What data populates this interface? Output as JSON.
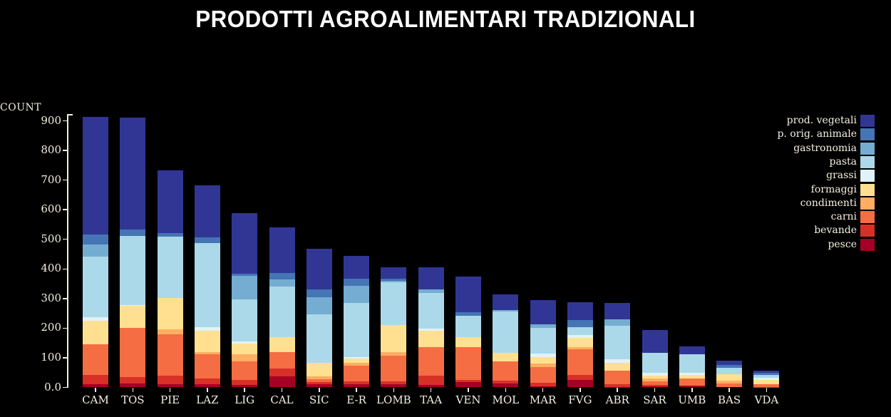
{
  "title": "PRODOTTI AGROALIMENTARI TRADIZIONALI",
  "y_axis": {
    "label": "COUNT",
    "tick_labels": [
      "0.0",
      "100",
      "200",
      "300",
      "400",
      "500",
      "600",
      "700",
      "800",
      "900"
    ],
    "tick_values": [
      0,
      100,
      200,
      300,
      400,
      500,
      600,
      700,
      800,
      900
    ]
  },
  "legend": [
    {
      "label": "prod. vegetali",
      "color": "#313695"
    },
    {
      "label": "p. orig. animale",
      "color": "#4575b4"
    },
    {
      "label": "gastronomia",
      "color": "#74add1"
    },
    {
      "label": "pasta",
      "color": "#abd9e9"
    },
    {
      "label": "grassi",
      "color": "#e0f3f8"
    },
    {
      "label": "formaggi",
      "color": "#fee090"
    },
    {
      "label": "condimenti",
      "color": "#fdae61"
    },
    {
      "label": "carni",
      "color": "#f46d43"
    },
    {
      "label": "bevande",
      "color": "#d73027"
    },
    {
      "label": "pesce",
      "color": "#a50026"
    }
  ],
  "chart_data": {
    "type": "bar",
    "stacked": true,
    "title": "PRODOTTI AGROALIMENTARI TRADIZIONALI",
    "xlabel": "",
    "ylabel": "COUNT",
    "ylim": [
      0,
      900
    ],
    "grid": false,
    "legend_position": "right",
    "categories": [
      "CAM",
      "TOS",
      "PIE",
      "LAZ",
      "LIG",
      "CAL",
      "SIC",
      "E-R",
      "LOMB",
      "TAA",
      "VEN",
      "MOL",
      "MAR",
      "FVG",
      "ABR",
      "SAR",
      "UMB",
      "BAS",
      "VDA"
    ],
    "totals": [
      913,
      911,
      733,
      683,
      589,
      540,
      468,
      444,
      406,
      406,
      374,
      313,
      296,
      288,
      285,
      193,
      138,
      90,
      57
    ],
    "stack_order": "series listed bottom-to-top",
    "series": [
      {
        "name": "pesce",
        "color": "#a50026",
        "values": [
          11,
          13,
          11,
          11,
          9,
          37,
          10,
          11,
          11,
          9,
          17,
          14,
          3,
          25,
          2,
          3,
          6,
          0,
          0
        ]
      },
      {
        "name": "bevande",
        "color": "#d73027",
        "values": [
          30,
          22,
          28,
          20,
          16,
          27,
          8,
          10,
          10,
          30,
          8,
          10,
          13,
          16,
          8,
          6,
          0,
          0,
          2
        ]
      },
      {
        "name": "carni",
        "color": "#f46d43",
        "values": [
          105,
          165,
          140,
          80,
          62,
          56,
          10,
          53,
          86,
          96,
          111,
          64,
          52,
          88,
          46,
          12,
          25,
          14,
          9
        ]
      },
      {
        "name": "condimenti",
        "color": "#fdae61",
        "values": [
          0,
          0,
          16,
          8,
          24,
          0,
          9,
          10,
          12,
          0,
          0,
          0,
          12,
          6,
          0,
          10,
          0,
          8,
          0
        ]
      },
      {
        "name": "formaggi",
        "color": "#fee090",
        "values": [
          80,
          75,
          108,
          72,
          36,
          50,
          47,
          14,
          92,
          56,
          34,
          28,
          22,
          32,
          28,
          10,
          10,
          22,
          14
        ]
      },
      {
        "name": "grassi",
        "color": "#e0f3f8",
        "values": [
          10,
          4,
          0,
          12,
          8,
          0,
          0,
          4,
          0,
          8,
          0,
          0,
          12,
          10,
          12,
          8,
          8,
          0,
          8
        ]
      },
      {
        "name": "pasta",
        "color": "#abd9e9",
        "values": [
          205,
          233,
          205,
          285,
          142,
          171,
          164,
          184,
          144,
          121,
          71,
          140,
          88,
          27,
          112,
          68,
          63,
          22,
          9
        ]
      },
      {
        "name": "gastronomia",
        "color": "#74add1",
        "values": [
          41,
          0,
          0,
          0,
          80,
          24,
          56,
          56,
          6,
          10,
          0,
          6,
          10,
          0,
          22,
          0,
          0,
          0,
          0
        ]
      },
      {
        "name": "p. orig. animale",
        "color": "#4575b4",
        "values": [
          34,
          22,
          14,
          18,
          8,
          22,
          28,
          24,
          6,
          0,
          14,
          0,
          0,
          24,
          0,
          0,
          0,
          10,
          7
        ]
      },
      {
        "name": "prod. vegetali",
        "color": "#313695",
        "values": [
          397,
          377,
          211,
          177,
          204,
          153,
          136,
          78,
          39,
          76,
          119,
          51,
          84,
          60,
          55,
          76,
          26,
          14,
          8
        ]
      }
    ]
  }
}
